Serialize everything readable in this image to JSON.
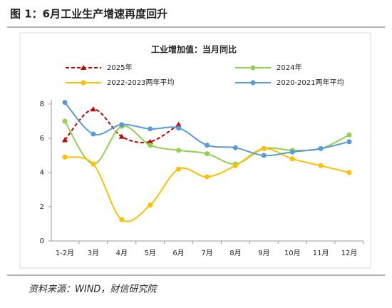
{
  "heading": "图 1：6月工业生产增速再度回升",
  "source": "资料来源：WIND，财信研究院",
  "chart_data": {
    "type": "line",
    "title": "工业增加值：当月同比",
    "categories": [
      "1-2月",
      "3月",
      "4月",
      "5月",
      "6月",
      "7月",
      "8月",
      "9月",
      "10月",
      "11月",
      "12月"
    ],
    "ylim": [
      0,
      8
    ],
    "yticks": [
      0,
      2,
      4,
      6,
      8
    ],
    "smooth": true,
    "series": [
      {
        "name": "2025年",
        "color": "#c00000",
        "dashed": true,
        "marker": "triangle",
        "values": [
          5.9,
          7.7,
          6.1,
          5.8,
          6.8,
          null,
          null,
          null,
          null,
          null,
          null
        ]
      },
      {
        "name": "2024年",
        "color": "#92d050",
        "dashed": false,
        "marker": "circle",
        "values": [
          7.0,
          4.5,
          6.7,
          5.6,
          5.3,
          5.1,
          4.5,
          5.4,
          5.3,
          5.4,
          6.2
        ]
      },
      {
        "name": "2022-2023两年平均",
        "color": "#ffc000",
        "dashed": false,
        "marker": "circle",
        "values": [
          4.9,
          4.5,
          1.25,
          2.1,
          4.2,
          3.75,
          4.4,
          5.4,
          4.8,
          4.4,
          4.0
        ]
      },
      {
        "name": "2020-2021两年平均",
        "color": "#5b9bd5",
        "dashed": false,
        "marker": "circle",
        "values": [
          8.1,
          6.25,
          6.8,
          6.55,
          6.6,
          5.6,
          5.45,
          5.0,
          5.2,
          5.4,
          5.8
        ]
      }
    ]
  }
}
